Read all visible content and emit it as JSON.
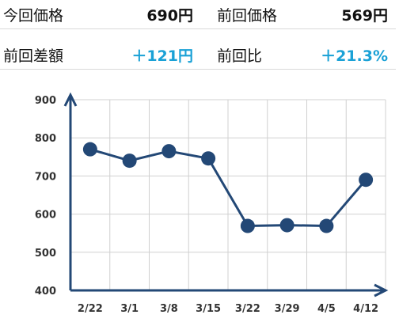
{
  "stats": [
    {
      "label": "今回価格",
      "value": "690円",
      "highlight": false
    },
    {
      "label": "前回価格",
      "value": "569円",
      "highlight": false
    },
    {
      "label": "前回差額",
      "value": "＋121円",
      "highlight": true
    },
    {
      "label": "前回比",
      "value": "＋21.3%",
      "highlight": true
    }
  ],
  "colors": {
    "line": "#234876",
    "positive": "#1aa1d6",
    "grid": "#d0d0d0"
  },
  "chart_data": {
    "type": "line",
    "categories": [
      "2/22",
      "3/1",
      "3/8",
      "3/15",
      "3/22",
      "3/29",
      "4/5",
      "4/12"
    ],
    "series": [
      {
        "values": [
          770,
          740,
          765,
          746,
          569,
          571,
          569,
          690
        ]
      }
    ],
    "ylim": [
      400,
      900
    ],
    "yticks": [
      900,
      800,
      700,
      600,
      500,
      400
    ],
    "grid": true
  }
}
